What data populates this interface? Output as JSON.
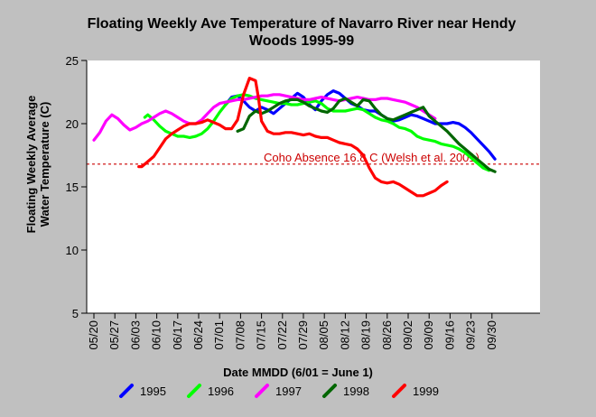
{
  "chart_data": {
    "type": "line",
    "title_line1": "Floating Weekly Ave Temperature of Navarro River near Hendy",
    "title_line2": "Woods 1995-99",
    "xlabel": "Date MMDD (6/01 = June 1)",
    "ylabel_line1": "Floating Weekly Average",
    "ylabel_line2": "Water Temperature (C)",
    "ylim": [
      5,
      25
    ],
    "yticks": [
      "5",
      "10",
      "15",
      "20",
      "25"
    ],
    "y_tick_values": [
      5,
      10,
      15,
      20,
      25
    ],
    "x_tick_labels": [
      "05/20",
      "05/27",
      "06/03",
      "06/10",
      "06/17",
      "06/24",
      "07/01",
      "07/08",
      "07/15",
      "07/22",
      "07/29",
      "08/05",
      "08/12",
      "08/19",
      "08/26",
      "09/02",
      "09/09",
      "09/16",
      "09/23",
      "09/30"
    ],
    "x_units_note": "x values are days counted from the 05/20 tick",
    "xlim": [
      0,
      147
    ],
    "grid": false,
    "legend_position": "bottom",
    "threshold": {
      "label": "Coho Absence 16.8 C (Welsh et al. 2001)",
      "value": 16.8,
      "color": "#cc0000"
    },
    "series": [
      {
        "name": "1995",
        "color": "#0000ff",
        "points": [
          [
            44,
            21.5
          ],
          [
            46,
            22.1
          ],
          [
            48,
            22.2
          ],
          [
            50,
            21.8
          ],
          [
            52,
            21.3
          ],
          [
            54,
            21.0
          ],
          [
            56,
            21.3
          ],
          [
            58,
            21.1
          ],
          [
            60,
            20.8
          ],
          [
            62,
            21.2
          ],
          [
            64,
            21.6
          ],
          [
            66,
            22.0
          ],
          [
            68,
            22.4
          ],
          [
            70,
            22.1
          ],
          [
            72,
            21.5
          ],
          [
            74,
            21.1
          ],
          [
            76,
            21.8
          ],
          [
            78,
            22.3
          ],
          [
            80,
            22.6
          ],
          [
            82,
            22.4
          ],
          [
            84,
            22.0
          ],
          [
            86,
            21.6
          ],
          [
            88,
            21.4
          ],
          [
            90,
            21.1
          ],
          [
            92,
            21.0
          ],
          [
            94,
            21.0
          ],
          [
            96,
            20.7
          ],
          [
            98,
            20.4
          ],
          [
            100,
            20.2
          ],
          [
            102,
            20.3
          ],
          [
            104,
            20.5
          ],
          [
            106,
            20.7
          ],
          [
            108,
            20.6
          ],
          [
            110,
            20.4
          ],
          [
            112,
            20.2
          ],
          [
            114,
            20.0
          ],
          [
            116,
            20.0
          ],
          [
            118,
            20.0
          ],
          [
            120,
            20.1
          ],
          [
            122,
            20.0
          ],
          [
            124,
            19.7
          ],
          [
            126,
            19.3
          ],
          [
            128,
            18.8
          ],
          [
            130,
            18.3
          ],
          [
            132,
            17.8
          ],
          [
            134,
            17.2
          ]
        ]
      },
      {
        "name": "1996",
        "color": "#00ff00",
        "points": [
          [
            17,
            20.5
          ],
          [
            18,
            20.7
          ],
          [
            20,
            20.3
          ],
          [
            22,
            19.8
          ],
          [
            24,
            19.4
          ],
          [
            26,
            19.2
          ],
          [
            28,
            19.0
          ],
          [
            30,
            19.0
          ],
          [
            32,
            18.9
          ],
          [
            34,
            19.0
          ],
          [
            36,
            19.2
          ],
          [
            38,
            19.6
          ],
          [
            40,
            20.2
          ],
          [
            42,
            20.9
          ],
          [
            44,
            21.5
          ],
          [
            46,
            22.0
          ],
          [
            48,
            22.2
          ],
          [
            50,
            22.3
          ],
          [
            52,
            22.2
          ],
          [
            54,
            22.0
          ],
          [
            56,
            21.9
          ],
          [
            58,
            21.8
          ],
          [
            60,
            21.7
          ],
          [
            62,
            21.6
          ],
          [
            64,
            21.6
          ],
          [
            66,
            21.5
          ],
          [
            68,
            21.5
          ],
          [
            70,
            21.6
          ],
          [
            72,
            21.7
          ],
          [
            74,
            21.8
          ],
          [
            76,
            21.6
          ],
          [
            78,
            21.2
          ],
          [
            80,
            21.0
          ],
          [
            82,
            21.0
          ],
          [
            84,
            21.0
          ],
          [
            86,
            21.1
          ],
          [
            88,
            21.2
          ],
          [
            90,
            21.1
          ],
          [
            92,
            20.8
          ],
          [
            94,
            20.5
          ],
          [
            96,
            20.3
          ],
          [
            98,
            20.2
          ],
          [
            100,
            20.0
          ],
          [
            102,
            19.7
          ],
          [
            104,
            19.6
          ],
          [
            106,
            19.4
          ],
          [
            108,
            19.0
          ],
          [
            110,
            18.8
          ],
          [
            112,
            18.7
          ],
          [
            114,
            18.6
          ],
          [
            116,
            18.4
          ],
          [
            118,
            18.3
          ],
          [
            120,
            18.2
          ],
          [
            122,
            18.0
          ],
          [
            124,
            17.7
          ],
          [
            126,
            17.3
          ],
          [
            128,
            16.9
          ],
          [
            130,
            16.5
          ],
          [
            132,
            16.3
          ]
        ]
      },
      {
        "name": "1997",
        "color": "#ff00ff",
        "points": [
          [
            0,
            18.7
          ],
          [
            2,
            19.3
          ],
          [
            4,
            20.2
          ],
          [
            6,
            20.7
          ],
          [
            8,
            20.4
          ],
          [
            10,
            19.9
          ],
          [
            12,
            19.5
          ],
          [
            14,
            19.7
          ],
          [
            16,
            20.0
          ],
          [
            18,
            20.2
          ],
          [
            20,
            20.5
          ],
          [
            22,
            20.8
          ],
          [
            24,
            21.0
          ],
          [
            26,
            20.8
          ],
          [
            28,
            20.5
          ],
          [
            30,
            20.2
          ],
          [
            32,
            20.0
          ],
          [
            34,
            20.0
          ],
          [
            36,
            20.3
          ],
          [
            38,
            20.8
          ],
          [
            40,
            21.3
          ],
          [
            42,
            21.6
          ],
          [
            44,
            21.7
          ],
          [
            46,
            21.8
          ],
          [
            48,
            21.9
          ],
          [
            50,
            21.9
          ],
          [
            52,
            22.0
          ],
          [
            54,
            22.1
          ],
          [
            56,
            22.2
          ],
          [
            58,
            22.2
          ],
          [
            60,
            22.3
          ],
          [
            62,
            22.3
          ],
          [
            64,
            22.2
          ],
          [
            66,
            22.1
          ],
          [
            68,
            22.0
          ],
          [
            70,
            21.9
          ],
          [
            72,
            21.9
          ],
          [
            74,
            22.0
          ],
          [
            76,
            22.1
          ],
          [
            78,
            22.0
          ],
          [
            80,
            21.9
          ],
          [
            82,
            21.8
          ],
          [
            84,
            21.9
          ],
          [
            86,
            22.0
          ],
          [
            88,
            22.1
          ],
          [
            90,
            22.0
          ],
          [
            92,
            21.9
          ],
          [
            94,
            21.9
          ],
          [
            96,
            22.0
          ],
          [
            98,
            22.0
          ],
          [
            100,
            21.9
          ],
          [
            102,
            21.8
          ],
          [
            104,
            21.7
          ],
          [
            106,
            21.5
          ],
          [
            108,
            21.3
          ],
          [
            110,
            21.0
          ],
          [
            112,
            20.7
          ],
          [
            114,
            20.4
          ]
        ]
      },
      {
        "name": "1998",
        "color": "#006600",
        "points": [
          [
            48,
            19.4
          ],
          [
            50,
            19.6
          ],
          [
            52,
            20.6
          ],
          [
            54,
            21.0
          ],
          [
            56,
            20.8
          ],
          [
            58,
            21.0
          ],
          [
            60,
            21.3
          ],
          [
            62,
            21.6
          ],
          [
            64,
            21.8
          ],
          [
            66,
            21.9
          ],
          [
            68,
            21.9
          ],
          [
            70,
            21.7
          ],
          [
            72,
            21.4
          ],
          [
            74,
            21.2
          ],
          [
            76,
            21.0
          ],
          [
            78,
            20.9
          ],
          [
            80,
            21.2
          ],
          [
            82,
            21.8
          ],
          [
            84,
            22.0
          ],
          [
            86,
            21.7
          ],
          [
            88,
            21.4
          ],
          [
            90,
            21.9
          ],
          [
            92,
            21.8
          ],
          [
            94,
            21.2
          ],
          [
            96,
            20.7
          ],
          [
            98,
            20.4
          ],
          [
            100,
            20.3
          ],
          [
            102,
            20.5
          ],
          [
            104,
            20.7
          ],
          [
            106,
            20.9
          ],
          [
            108,
            21.1
          ],
          [
            110,
            21.3
          ],
          [
            112,
            20.6
          ],
          [
            114,
            20.2
          ],
          [
            116,
            19.8
          ],
          [
            118,
            19.4
          ],
          [
            120,
            18.9
          ],
          [
            122,
            18.4
          ],
          [
            124,
            18.0
          ],
          [
            126,
            17.6
          ],
          [
            128,
            17.2
          ],
          [
            130,
            16.8
          ],
          [
            132,
            16.4
          ],
          [
            134,
            16.2
          ]
        ]
      },
      {
        "name": "1999",
        "color": "#ff0000",
        "points": [
          [
            15,
            16.6
          ],
          [
            16,
            16.6
          ],
          [
            18,
            17.0
          ],
          [
            20,
            17.4
          ],
          [
            22,
            18.1
          ],
          [
            24,
            18.8
          ],
          [
            26,
            19.2
          ],
          [
            28,
            19.5
          ],
          [
            30,
            19.8
          ],
          [
            32,
            20.0
          ],
          [
            34,
            20.0
          ],
          [
            36,
            20.1
          ],
          [
            38,
            20.3
          ],
          [
            40,
            20.1
          ],
          [
            42,
            19.9
          ],
          [
            44,
            19.6
          ],
          [
            46,
            19.6
          ],
          [
            48,
            20.3
          ],
          [
            50,
            22.3
          ],
          [
            52,
            23.6
          ],
          [
            54,
            23.4
          ],
          [
            55,
            22.0
          ],
          [
            56,
            20.2
          ],
          [
            58,
            19.4
          ],
          [
            60,
            19.2
          ],
          [
            62,
            19.2
          ],
          [
            64,
            19.3
          ],
          [
            66,
            19.3
          ],
          [
            68,
            19.2
          ],
          [
            70,
            19.1
          ],
          [
            72,
            19.2
          ],
          [
            74,
            19.0
          ],
          [
            76,
            18.9
          ],
          [
            78,
            18.9
          ],
          [
            80,
            18.7
          ],
          [
            82,
            18.5
          ],
          [
            84,
            18.4
          ],
          [
            86,
            18.3
          ],
          [
            88,
            18.0
          ],
          [
            90,
            17.5
          ],
          [
            92,
            16.5
          ],
          [
            94,
            15.7
          ],
          [
            96,
            15.4
          ],
          [
            98,
            15.3
          ],
          [
            100,
            15.4
          ],
          [
            102,
            15.2
          ],
          [
            104,
            14.9
          ],
          [
            106,
            14.6
          ],
          [
            108,
            14.3
          ],
          [
            110,
            14.3
          ],
          [
            112,
            14.5
          ],
          [
            114,
            14.7
          ],
          [
            116,
            15.1
          ],
          [
            118,
            15.4
          ]
        ]
      }
    ]
  }
}
